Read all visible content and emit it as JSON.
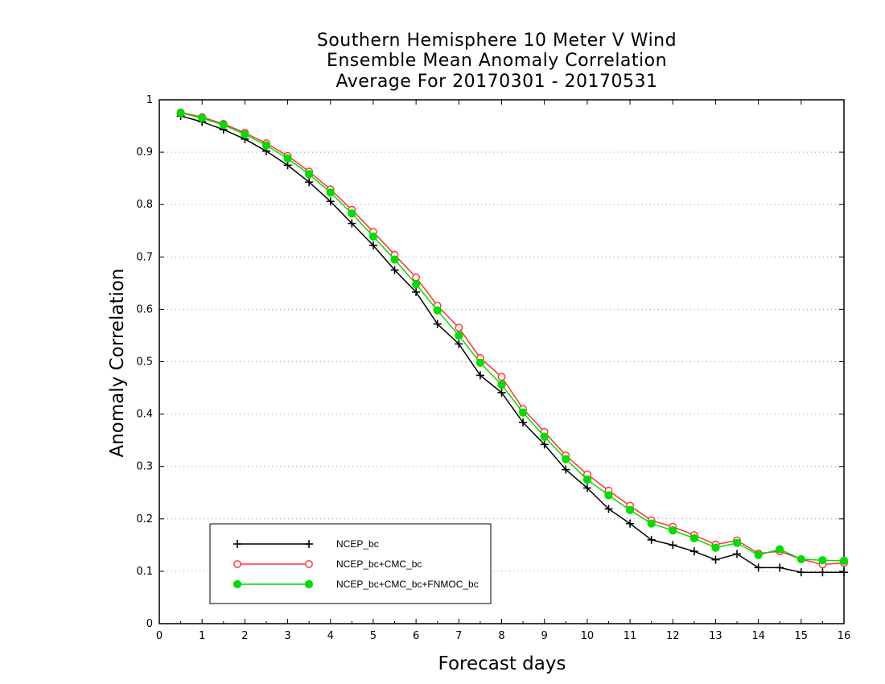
{
  "chart_data": {
    "type": "line",
    "title": [
      "Southern Hemisphere 10 Meter V Wind",
      "Ensemble Mean Anomaly Correlation",
      "Average For 20170301 - 20170531"
    ],
    "xlabel": "Forecast days",
    "ylabel": "Anomaly Correlation",
    "xlim": [
      0,
      16
    ],
    "ylim": [
      0,
      1
    ],
    "x_ticks": [
      "0",
      "1",
      "2",
      "3",
      "4",
      "5",
      "6",
      "7",
      "8",
      "9",
      "10",
      "11",
      "12",
      "13",
      "14",
      "15",
      "16"
    ],
    "y_ticks": [
      "0",
      "0.1",
      "0.2",
      "0.3",
      "0.4",
      "0.5",
      "0.6",
      "0.7",
      "0.8",
      "0.9",
      "1"
    ],
    "grid": "horizontal dotted",
    "legend_position": "bottom-left",
    "x": [
      0.5,
      1,
      1.5,
      2,
      2.5,
      3,
      3.5,
      4,
      4.5,
      5,
      5.5,
      6,
      6.5,
      7,
      7.5,
      8,
      8.5,
      9,
      9.5,
      10,
      10.5,
      11,
      11.5,
      12,
      12.5,
      13,
      13.5,
      14,
      14.5,
      15,
      15.5,
      16
    ],
    "series": [
      {
        "name": "NCEP_bc",
        "color": "#000000",
        "marker": "plus",
        "values": [
          0.969,
          0.958,
          0.943,
          0.925,
          0.902,
          0.875,
          0.843,
          0.806,
          0.764,
          0.722,
          0.675,
          0.633,
          0.572,
          0.534,
          0.474,
          0.441,
          0.384,
          0.342,
          0.294,
          0.259,
          0.219,
          0.191,
          0.16,
          0.15,
          0.138,
          0.122,
          0.133,
          0.107,
          0.107,
          0.098,
          0.098,
          0.098
        ]
      },
      {
        "name": "NCEP_bc+CMC_bc",
        "color": "#ff3030",
        "marker": "open-circle",
        "values": [
          0.976,
          0.967,
          0.954,
          0.937,
          0.917,
          0.893,
          0.863,
          0.829,
          0.79,
          0.748,
          0.704,
          0.661,
          0.607,
          0.565,
          0.507,
          0.471,
          0.41,
          0.366,
          0.321,
          0.285,
          0.254,
          0.225,
          0.197,
          0.185,
          0.169,
          0.151,
          0.159,
          0.134,
          0.138,
          0.123,
          0.113,
          0.116
        ]
      },
      {
        "name": "NCEP_bc+CMC_bc+FNMOC_bc",
        "color": "#00dd00",
        "marker": "filled-circle",
        "values": [
          0.975,
          0.965,
          0.952,
          0.934,
          0.913,
          0.888,
          0.858,
          0.823,
          0.783,
          0.739,
          0.695,
          0.648,
          0.598,
          0.55,
          0.498,
          0.456,
          0.403,
          0.357,
          0.314,
          0.275,
          0.245,
          0.217,
          0.191,
          0.178,
          0.163,
          0.145,
          0.154,
          0.131,
          0.142,
          0.123,
          0.121,
          0.12
        ]
      }
    ]
  }
}
